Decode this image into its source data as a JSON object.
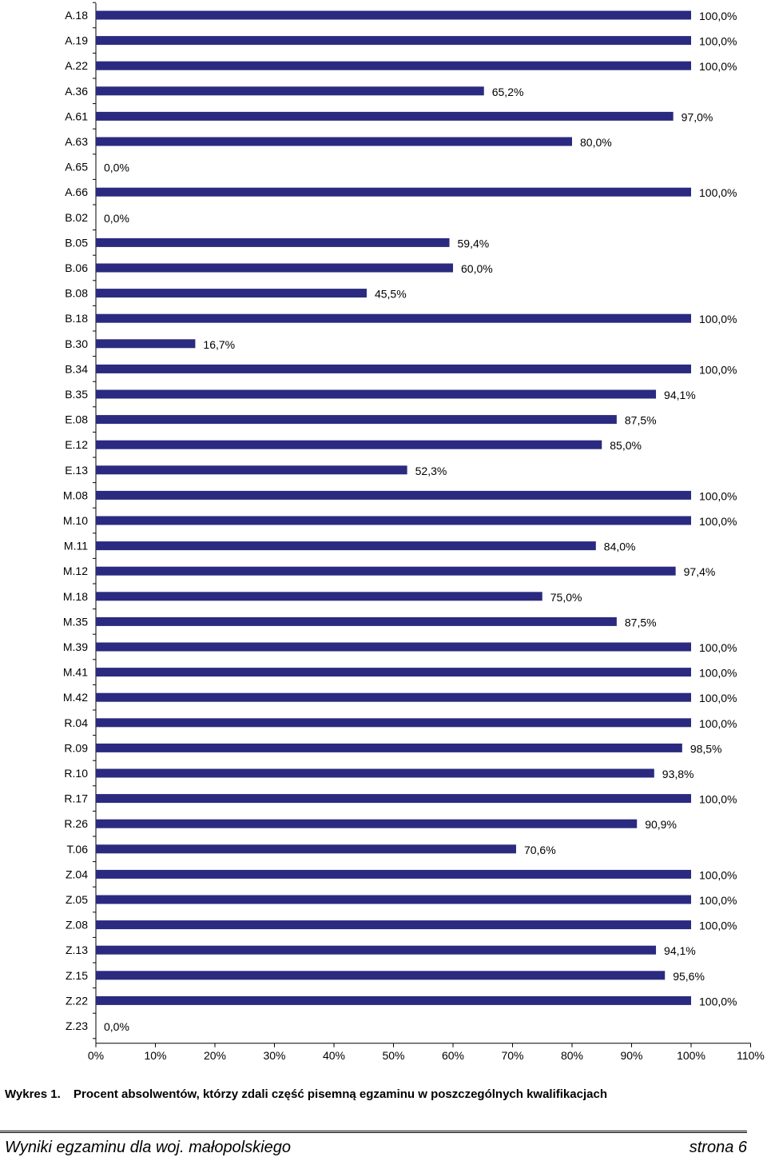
{
  "chart_data": {
    "type": "bar",
    "orientation": "horizontal",
    "categories": [
      "A.18",
      "A.19",
      "A.22",
      "A.36",
      "A.61",
      "A.63",
      "A.65",
      "A.66",
      "B.02",
      "B.05",
      "B.06",
      "B.08",
      "B.18",
      "B.30",
      "B.34",
      "B.35",
      "E.08",
      "E.12",
      "E.13",
      "M.08",
      "M.10",
      "M.11",
      "M.12",
      "M.18",
      "M.35",
      "M.39",
      "M.41",
      "M.42",
      "R.04",
      "R.09",
      "R.10",
      "R.17",
      "R.26",
      "T.06",
      "Z.04",
      "Z.05",
      "Z.08",
      "Z.13",
      "Z.15",
      "Z.22",
      "Z.23"
    ],
    "values": [
      100,
      100,
      100,
      65.2,
      97,
      80,
      0,
      100,
      0,
      59.4,
      60,
      45.5,
      100,
      16.7,
      100,
      94.1,
      87.5,
      85,
      52.3,
      100,
      100,
      84,
      97.4,
      75,
      87.5,
      100,
      100,
      100,
      100,
      98.5,
      93.8,
      100,
      90.9,
      70.6,
      100,
      100,
      100,
      94.1,
      95.6,
      100,
      0
    ],
    "value_labels": [
      "100,0%",
      "100,0%",
      "100,0%",
      "65,2%",
      "97,0%",
      "80,0%",
      "0,0%",
      "100,0%",
      "0,0%",
      "59,4%",
      "60,0%",
      "45,5%",
      "100,0%",
      "16,7%",
      "100,0%",
      "94,1%",
      "87,5%",
      "85,0%",
      "52,3%",
      "100,0%",
      "100,0%",
      "84,0%",
      "97,4%",
      "75,0%",
      "87,5%",
      "100,0%",
      "100,0%",
      "100,0%",
      "100,0%",
      "98,5%",
      "93,8%",
      "100,0%",
      "90,9%",
      "70,6%",
      "100,0%",
      "100,0%",
      "100,0%",
      "94,1%",
      "95,6%",
      "100,0%",
      "0,0%"
    ],
    "xlim": [
      0,
      110
    ],
    "xticks": [
      "0%",
      "10%",
      "20%",
      "30%",
      "40%",
      "50%",
      "60%",
      "70%",
      "80%",
      "90%",
      "100%",
      "110%"
    ],
    "grid": false,
    "bar_color": "#2a2a80"
  },
  "caption": {
    "label": "Wykres 1.",
    "text": "Procent absolwentów, którzy zdali część pisemną egzaminu w poszczególnych kwalifikacjach"
  },
  "footer": {
    "left": "Wyniki egzaminu dla woj. małopolskiego",
    "right": "strona 6"
  }
}
